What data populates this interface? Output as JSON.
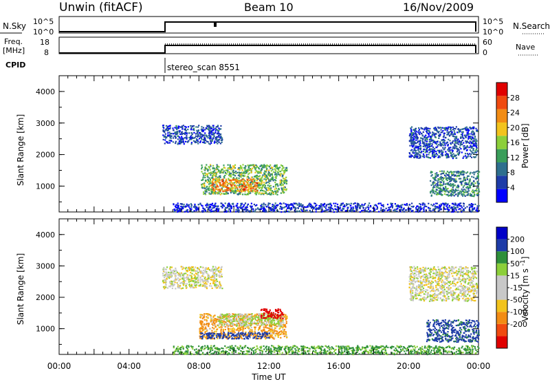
{
  "header": {
    "station": "Unwin (fitACF)",
    "beam": "Beam 10",
    "date": "16/Nov/2009"
  },
  "strips": {
    "nsky_label": "N.Sky",
    "nsearch_label": "N.Search",
    "nsky_ticks": [
      "10^5",
      "10^0"
    ],
    "nsearch_ticks": [
      "10^5",
      "10^0"
    ],
    "freq_label_1": "Freq.",
    "freq_label_2": "[MHz]",
    "freq_ticks": [
      "18",
      "8"
    ],
    "nave_label": "Nave",
    "nave_ticks": [
      "60",
      "0"
    ],
    "cpid_label": "CPID",
    "cpid_value": "stereo_scan 8551"
  },
  "colors": {
    "power": [
      "#0000ff",
      "#1e3ca8",
      "#2e6f8e",
      "#3a9e5a",
      "#8ccf3a",
      "#f2c31d",
      "#f28c14",
      "#f04a10",
      "#e00000"
    ],
    "velocity": [
      "#e00000",
      "#f04a10",
      "#f28c14",
      "#f2c31d",
      "#c8c8c8",
      "#c8c8c8",
      "#8ccf3a",
      "#2e8f3a",
      "#1e3ca8",
      "#0000c8"
    ]
  },
  "chart_data": [
    {
      "type": "heatmap",
      "panel": "power",
      "ylabel": "Slant Range [km]",
      "yticks": [
        "1000",
        "2000",
        "3000",
        "4000"
      ],
      "ylim": [
        180,
        4500
      ],
      "xlim": [
        0,
        24
      ],
      "colorbar_label": "Power [dB]",
      "colorbar_ticks": [
        "4",
        "8",
        "12",
        "16",
        "20",
        "24",
        "28"
      ],
      "colorbar_range": [
        0,
        32
      ],
      "regions": [
        {
          "t0": 5.9,
          "t1": 9.3,
          "r0": 2350,
          "r1": 2950,
          "level": 6
        },
        {
          "t0": 8.1,
          "t1": 13.0,
          "r0": 750,
          "r1": 1700,
          "level": 14
        },
        {
          "t0": 8.7,
          "t1": 11.3,
          "r0": 850,
          "r1": 1250,
          "level": 24
        },
        {
          "t0": 20.0,
          "t1": 23.9,
          "r0": 1900,
          "r1": 2900,
          "level": 6
        },
        {
          "t0": 21.2,
          "t1": 24.0,
          "r0": 700,
          "r1": 1500,
          "level": 10
        },
        {
          "t0": 6.5,
          "t1": 24.0,
          "r0": 200,
          "r1": 480,
          "level": 4
        }
      ]
    },
    {
      "type": "heatmap",
      "panel": "velocity",
      "ylabel": "Slant Range [km]",
      "yticks": [
        "1000",
        "2000",
        "3000",
        "4000"
      ],
      "ylim": [
        180,
        4500
      ],
      "xlim": [
        0,
        24
      ],
      "colorbar_label": "Velocity [m s^-1]",
      "colorbar_ticks": [
        "200",
        "100",
        "50",
        "15",
        "-15",
        "-50",
        "-100",
        "-200"
      ],
      "regions": [
        {
          "t0": 5.9,
          "t1": 9.3,
          "r0": 2300,
          "r1": 3000,
          "velocity": 0
        },
        {
          "t0": 8.0,
          "t1": 13.0,
          "r0": 700,
          "r1": 1500,
          "velocity": -40
        },
        {
          "t0": 9.0,
          "t1": 12.8,
          "r0": 1100,
          "r1": 1500,
          "velocity": 20
        },
        {
          "t0": 11.5,
          "t1": 12.8,
          "r0": 1350,
          "r1": 1650,
          "velocity": -180
        },
        {
          "t0": 8.0,
          "t1": 12.0,
          "r0": 700,
          "r1": 900,
          "velocity": 150
        },
        {
          "t0": 20.0,
          "t1": 23.9,
          "r0": 1900,
          "r1": 3000,
          "velocity": 0
        },
        {
          "t0": 21.0,
          "t1": 24.0,
          "r0": 600,
          "r1": 1300,
          "velocity": 120
        },
        {
          "t0": 6.5,
          "t1": 24.0,
          "r0": 200,
          "r1": 480,
          "velocity": 60
        }
      ]
    }
  ],
  "xaxis": {
    "label": "Time UT",
    "ticks": [
      "00:00",
      "04:00",
      "08:00",
      "12:00",
      "16:00",
      "20:00",
      "00:00"
    ]
  }
}
